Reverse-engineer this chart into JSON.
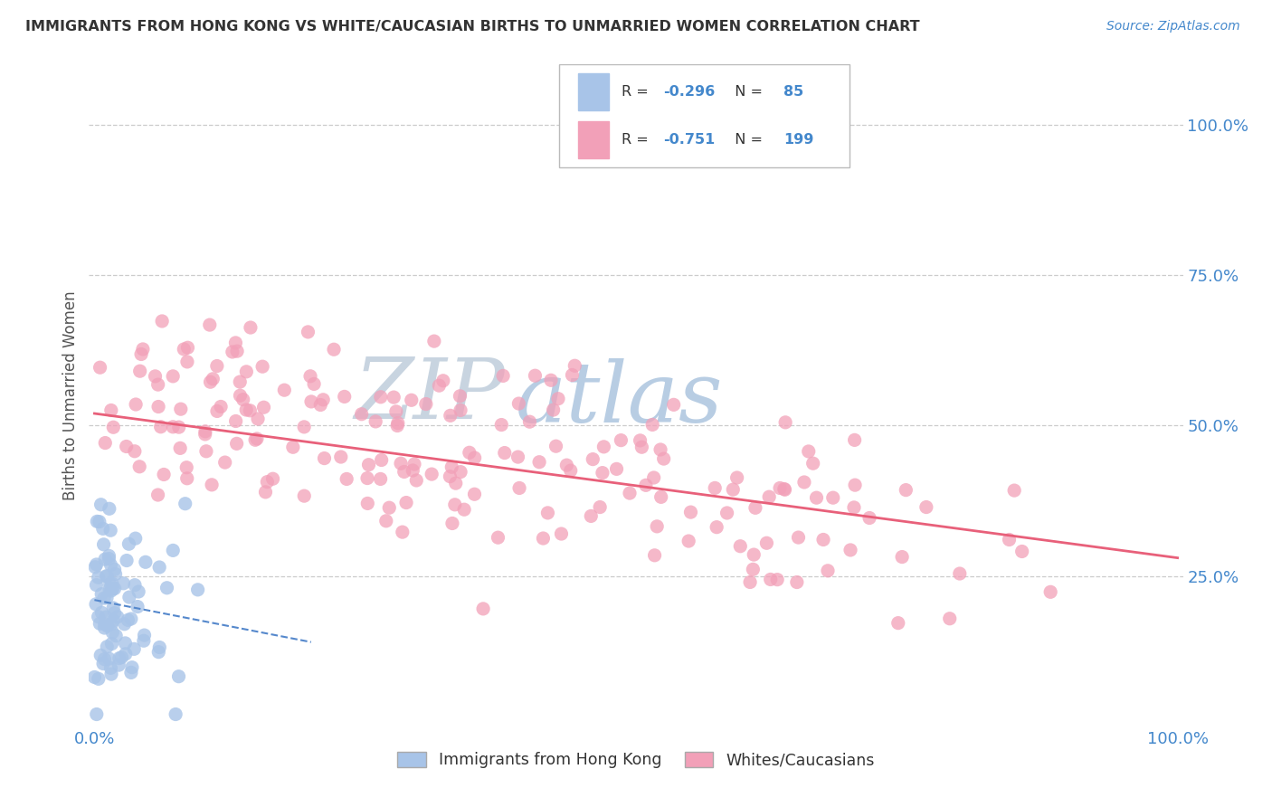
{
  "title": "IMMIGRANTS FROM HONG KONG VS WHITE/CAUCASIAN BIRTHS TO UNMARRIED WOMEN CORRELATION CHART",
  "source": "Source: ZipAtlas.com",
  "ylabel": "Births to Unmarried Women",
  "legend_labels": [
    "Immigrants from Hong Kong",
    "Whites/Caucasians"
  ],
  "legend_r": [
    -0.296,
    -0.751
  ],
  "legend_n": [
    85,
    199
  ],
  "watermark_zip": "ZIP",
  "watermark_atlas": "atlas",
  "blue_color": "#a8c4e8",
  "pink_color": "#f2a0b8",
  "blue_line_color": "#5588cc",
  "pink_line_color": "#e8607a",
  "title_color": "#333333",
  "axis_color": "#4488cc",
  "source_color": "#4488cc",
  "legend_r_color": "#4488cc",
  "legend_n_color": "#4488cc",
  "background_color": "#ffffff",
  "grid_color": "#cccccc",
  "watermark_zip_color": "#c8d4e0",
  "watermark_atlas_color": "#9ab8d8"
}
